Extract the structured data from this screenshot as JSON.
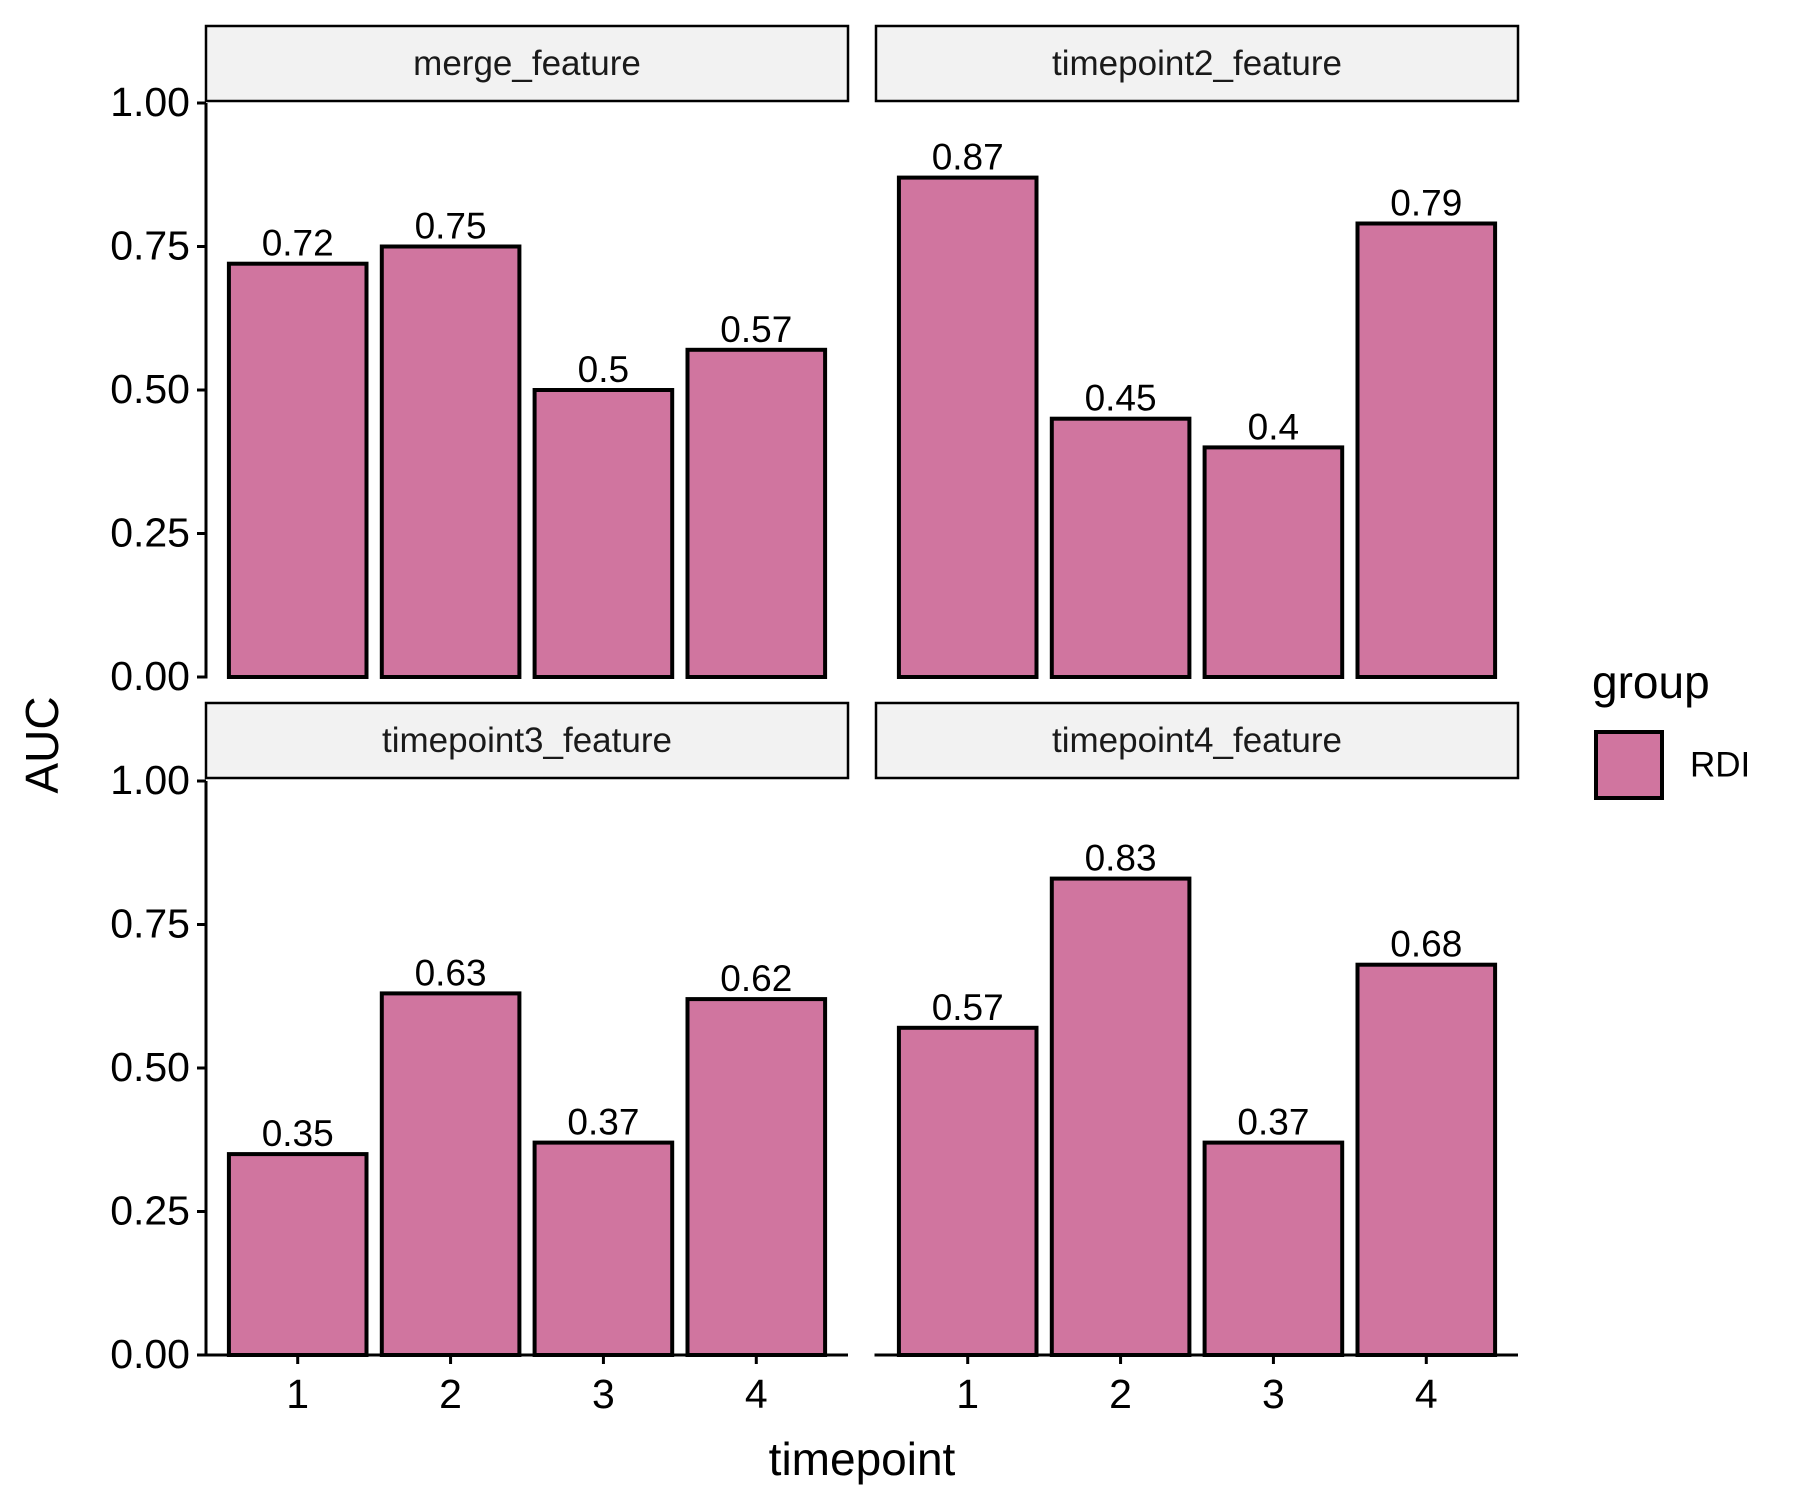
{
  "chart_data": {
    "type": "bar",
    "facets": [
      {
        "title": "merge_feature",
        "values": [
          0.72,
          0.75,
          0.5,
          0.57
        ],
        "labels": [
          "0.72",
          "0.75",
          "0.5",
          "0.57"
        ]
      },
      {
        "title": "timepoint2_feature",
        "values": [
          0.87,
          0.45,
          0.4,
          0.79
        ],
        "labels": [
          "0.87",
          "0.45",
          "0.4",
          "0.79"
        ]
      },
      {
        "title": "timepoint3_feature",
        "values": [
          0.35,
          0.63,
          0.37,
          0.62
        ],
        "labels": [
          "0.35",
          "0.63",
          "0.37",
          "0.62"
        ]
      },
      {
        "title": "timepoint4_feature",
        "values": [
          0.57,
          0.83,
          0.37,
          0.68
        ],
        "labels": [
          "0.57",
          "0.83",
          "0.37",
          "0.68"
        ]
      }
    ],
    "categories": [
      "1",
      "2",
      "3",
      "4"
    ],
    "xlabel": "timepoint",
    "ylabel": "AUC",
    "ylim": [
      0,
      1.12
    ],
    "yticks": [
      "0.00",
      "0.25",
      "0.50",
      "0.75",
      "1.00"
    ],
    "legend": {
      "title": "group",
      "entries": [
        {
          "name": "RDI",
          "color": "#d0759f"
        }
      ],
      "position": "right"
    },
    "bar_color": "#d0759f",
    "grid": false
  }
}
